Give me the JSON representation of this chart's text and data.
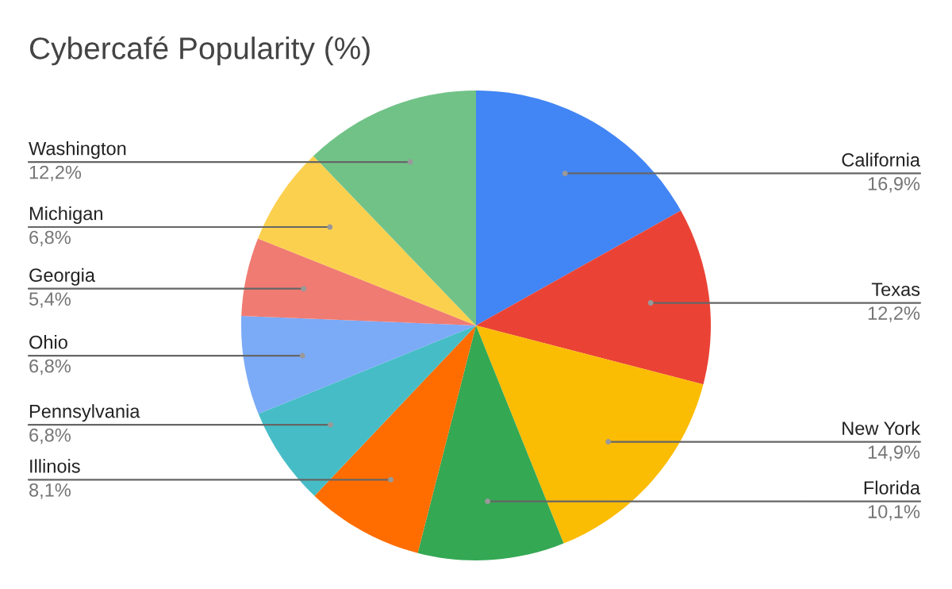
{
  "chart_data": {
    "type": "pie",
    "title": "Cybercafé Popularity (%)",
    "categories": [
      "California",
      "Texas",
      "New York",
      "Florida",
      "Illinois",
      "Pennsylvania",
      "Ohio",
      "Georgia",
      "Michigan",
      "Washington"
    ],
    "values": [
      16.9,
      12.2,
      14.9,
      10.1,
      8.1,
      6.8,
      6.8,
      5.4,
      6.8,
      12.2
    ],
    "value_labels": [
      "16,9%",
      "12,2%",
      "14,9%",
      "10,1%",
      "8,1%",
      "6,8%",
      "6,8%",
      "5,4%",
      "6,8%",
      "12,2%"
    ],
    "colors": [
      "#4285f4",
      "#ea4335",
      "#fbbc04",
      "#34a853",
      "#ff6d01",
      "#46bdc6",
      "#7baaf7",
      "#f07b72",
      "#fcd04f",
      "#71c287"
    ],
    "legend": false
  }
}
